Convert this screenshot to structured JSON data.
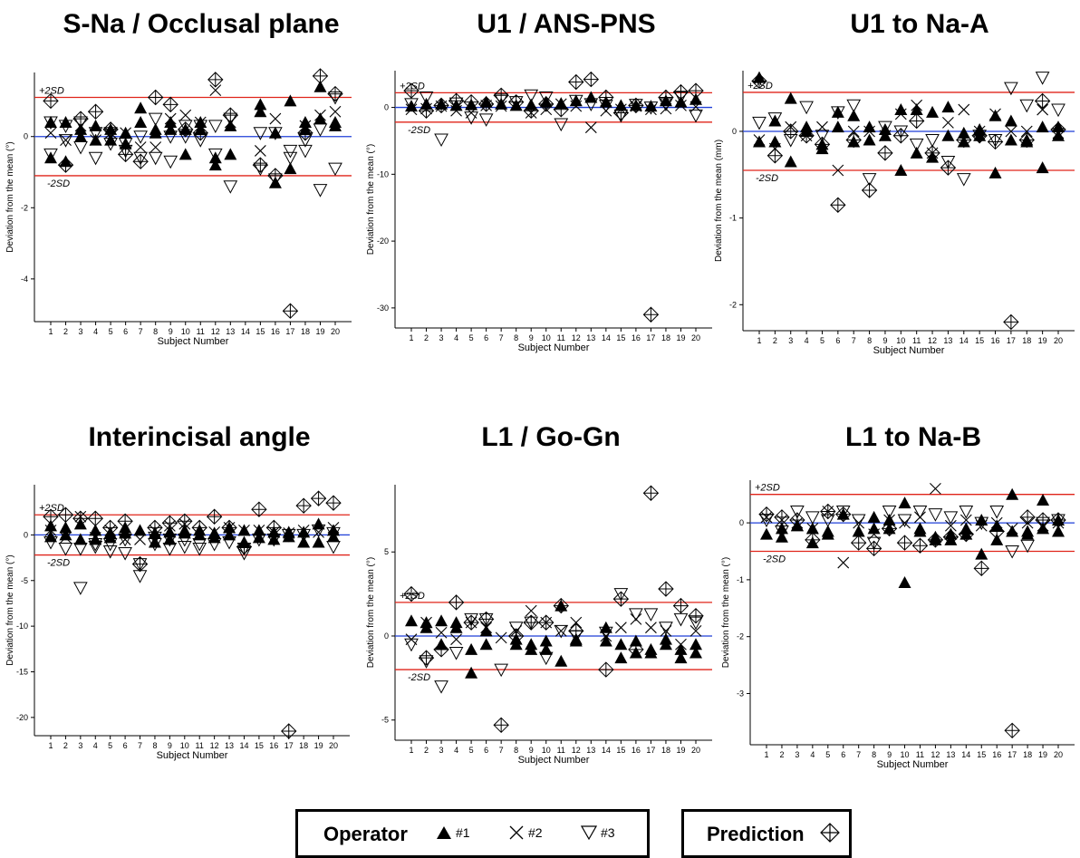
{
  "colors": {
    "ref": "#e0241a",
    "mean": "#1f3fd8",
    "marker": "#000000"
  },
  "chart_data": [
    {
      "type": "scatter",
      "title": "S-Na / Occlusal plane",
      "xlabel": "Subject Number",
      "ylabel": "Deviation from the mean (°)",
      "ylim": [
        -5.2,
        1.8
      ],
      "yticks": [
        -4,
        -2,
        0
      ],
      "plus2sd": 1.1,
      "minus2sd": -1.1,
      "sd_labels": [
        "+2SD",
        "-2SD"
      ],
      "x": [
        1,
        2,
        3,
        4,
        5,
        6,
        7,
        8,
        9,
        10,
        11,
        12,
        13,
        14,
        15,
        16,
        17,
        18,
        19,
        20
      ],
      "series": [
        {
          "name": "#1",
          "values": [
            0.4,
            0.4,
            0.2,
            0.3,
            0.2,
            0.1,
            0.8,
            0.2,
            0.2,
            -0.5,
            0.4,
            -0.6,
            0.3,
            null,
            0.9,
            -1.3,
            1.0,
            0.4,
            1.4,
            0.3
          ]
        },
        {
          "name": "#1",
          "values": [
            -0.6,
            -0.7,
            0.0,
            -0.1,
            -0.1,
            -0.2,
            0.4,
            0.1,
            0.4,
            0.2,
            0.2,
            -0.8,
            -0.5,
            null,
            0.7,
            0.1,
            -0.9,
            0.2,
            0.5,
            0.4
          ]
        },
        {
          "name": "#2",
          "values": [
            0.1,
            -0.1,
            0.3,
            -0.1,
            0.1,
            0.1,
            -0.3,
            -0.3,
            0.5,
            0.6,
            0.4,
            1.3,
            0.4,
            null,
            -0.4,
            0.5,
            null,
            0.3,
            0.6,
            0.7
          ]
        },
        {
          "name": "#3",
          "values": [
            -0.5,
            -0.1,
            -0.3,
            -0.6,
            0.1,
            -0.4,
            -0.6,
            -0.6,
            -0.7,
            0.0,
            -0.1,
            -0.5,
            -1.4,
            null,
            -0.9,
            -1.2,
            -0.6,
            -0.4,
            -1.5,
            -0.9
          ]
        },
        {
          "name": "#3",
          "values": [
            0.4,
            0.3,
            0.4,
            0.1,
            -0.2,
            -0.2,
            0.0,
            0.5,
            0.0,
            0.3,
            0.3,
            0.3,
            0.5,
            null,
            0.1,
            0.1,
            -0.4,
            -0.1,
            0.2,
            1.1
          ]
        },
        {
          "name": "Prediction",
          "values": [
            1.0,
            -0.8,
            0.5,
            0.7,
            0.2,
            -0.5,
            -0.7,
            1.1,
            0.9,
            0.2,
            0.1,
            1.6,
            0.6,
            null,
            -0.8,
            -1.1,
            -4.9,
            0.1,
            1.7,
            1.2
          ]
        }
      ]
    },
    {
      "type": "scatter",
      "title": "U1 / ANS-PNS",
      "xlabel": "Subject Number",
      "ylabel": "Deviation from the mean (°)",
      "ylim": [
        -33,
        5.5
      ],
      "yticks": [
        -30,
        -20,
        -10,
        0
      ],
      "plus2sd": 2.2,
      "minus2sd": -2.2,
      "sd_labels": [
        "+2SD",
        "-2SD"
      ],
      "x": [
        1,
        2,
        3,
        4,
        5,
        6,
        7,
        8,
        9,
        10,
        11,
        12,
        13,
        14,
        15,
        16,
        17,
        18,
        19,
        20
      ],
      "series": [
        {
          "name": "#1",
          "values": [
            0.2,
            0.5,
            0.5,
            0.3,
            0.4,
            0.8,
            0.5,
            0.3,
            0.4,
            0.8,
            0.6,
            1.0,
            1.5,
            0.8,
            0.3,
            0.3,
            0.2,
            1.0,
            0.8,
            1.2
          ]
        },
        {
          "name": "#2",
          "values": [
            -0.3,
            -0.2,
            0.2,
            -0.5,
            -0.8,
            0.3,
            0.2,
            0.4,
            -0.8,
            -0.3,
            0.5,
            0.2,
            -3.0,
            -0.5,
            -0.3,
            0.2,
            -0.3,
            -0.2,
            0.3,
            0.1
          ]
        },
        {
          "name": "#3",
          "values": [
            0.5,
            1.5,
            -4.8,
            0.6,
            -1.5,
            -1.8,
            1.2,
            0.8,
            1.8,
            1.5,
            -2.5,
            1.0,
            0.5,
            0.3,
            -1.2,
            0.4,
            0.0,
            0.5,
            1.6,
            -1.2
          ]
        },
        {
          "name": "Prediction",
          "values": [
            2.5,
            -0.5,
            0.3,
            1.0,
            0.8,
            0.5,
            1.8,
            0.8,
            -0.5,
            0.5,
            -0.3,
            3.8,
            4.2,
            1.5,
            -0.8,
            0.3,
            -31.0,
            1.5,
            2.3,
            2.5
          ]
        }
      ]
    },
    {
      "type": "scatter",
      "title": "U1 to Na-A",
      "xlabel": "Subject Number",
      "ylabel": "Deviation from the mean (mm)",
      "ylim": [
        -2.3,
        0.7
      ],
      "yticks": [
        -2,
        -1,
        0
      ],
      "plus2sd": 0.45,
      "minus2sd": -0.45,
      "sd_labels": [
        "+2SD",
        "-2SD"
      ],
      "x": [
        1,
        2,
        3,
        4,
        5,
        6,
        7,
        8,
        9,
        10,
        11,
        12,
        13,
        14,
        15,
        16,
        17,
        18,
        19,
        20
      ],
      "series": [
        {
          "name": "#1",
          "values": [
            0.62,
            0.12,
            0.38,
            0.0,
            -0.2,
            0.22,
            0.18,
            0.05,
            0.02,
            0.25,
            0.25,
            0.22,
            0.28,
            -0.12,
            0.02,
            -0.48,
            0.12,
            -0.12,
            -0.42,
            -0.05
          ]
        },
        {
          "name": "#1",
          "values": [
            -0.12,
            -0.12,
            -0.35,
            0.05,
            -0.15,
            0.05,
            -0.12,
            -0.1,
            -0.05,
            -0.45,
            -0.25,
            -0.3,
            -0.05,
            -0.02,
            -0.05,
            0.18,
            -0.1,
            -0.1,
            0.05,
            0.05
          ]
        },
        {
          "name": "#2",
          "values": [
            -0.1,
            -0.2,
            0.05,
            -0.05,
            0.05,
            -0.45,
            0.0,
            0.0,
            -0.05,
            0.2,
            0.3,
            -0.25,
            0.1,
            0.25,
            0.0,
            0.2,
            0.0,
            0.0,
            0.25,
            -0.02
          ]
        },
        {
          "name": "#3",
          "values": [
            0.1,
            0.15,
            -0.1,
            0.28,
            -0.05,
            0.22,
            0.3,
            -0.55,
            0.05,
            0.0,
            -0.15,
            -0.1,
            -0.35,
            -0.55,
            -0.05,
            -0.1,
            0.5,
            0.3,
            0.62,
            0.25
          ]
        },
        {
          "name": "Prediction",
          "values": [
            0.58,
            -0.28,
            0.0,
            -0.05,
            -0.15,
            -0.85,
            -0.1,
            -0.68,
            -0.25,
            -0.05,
            0.12,
            -0.25,
            -0.42,
            -0.1,
            -0.05,
            -0.12,
            -2.2,
            -0.1,
            0.35,
            0.02
          ]
        }
      ]
    },
    {
      "type": "scatter",
      "title": "Interincisal angle",
      "xlabel": "Subject Number",
      "ylabel": "Deviation from the mean (°)",
      "ylim": [
        -22,
        5.5
      ],
      "yticks": [
        -20,
        -15,
        -10,
        -5,
        0
      ],
      "plus2sd": 2.2,
      "minus2sd": -2.2,
      "sd_labels": [
        "+2SD",
        "-2SD"
      ],
      "x": [
        1,
        2,
        3,
        4,
        5,
        6,
        7,
        8,
        9,
        10,
        11,
        12,
        13,
        14,
        15,
        16,
        17,
        18,
        19,
        20
      ],
      "series": [
        {
          "name": "#1",
          "values": [
            1.0,
            0.8,
            1.2,
            0.5,
            0.2,
            0.8,
            0.5,
            -0.8,
            0.3,
            0.5,
            0.5,
            -0.3,
            0.8,
            0.5,
            0.5,
            0.3,
            0.3,
            0.3,
            1.2,
            0.5
          ]
        },
        {
          "name": "#1",
          "values": [
            -0.2,
            0.0,
            -0.5,
            -0.5,
            -0.3,
            0.2,
            null,
            0.2,
            -0.5,
            0.2,
            0.0,
            0.2,
            0.0,
            -0.8,
            -0.3,
            -0.5,
            -0.2,
            -0.8,
            -0.8,
            -0.2
          ]
        },
        {
          "name": "#2",
          "values": [
            0.5,
            -0.3,
            2.0,
            -0.3,
            0.5,
            -0.5,
            -0.5,
            0.5,
            1.0,
            1.2,
            0.0,
            0.3,
            0.8,
            0.5,
            0.5,
            0.3,
            0.2,
            0.5,
            0.3,
            0.8
          ]
        },
        {
          "name": "#3",
          "values": [
            -0.8,
            -1.5,
            -5.8,
            -1.3,
            -1.8,
            -2.0,
            -4.5,
            -1.0,
            -1.5,
            -1.3,
            -1.5,
            -1.0,
            -0.8,
            -2.0,
            -0.5,
            -0.5,
            0.0,
            0.0,
            0.5,
            -1.3
          ]
        },
        {
          "name": "#3",
          "values": [
            null,
            null,
            -1.5,
            -1.0,
            -1.0,
            -0.5,
            -3.2,
            -0.3,
            -0.5,
            -0.5,
            -1.0,
            null,
            null,
            -1.5,
            null,
            null,
            null,
            null,
            null,
            0.2
          ]
        },
        {
          "name": "Prediction",
          "values": [
            2.0,
            2.2,
            1.8,
            1.8,
            0.8,
            1.5,
            -3.2,
            0.8,
            1.3,
            1.5,
            0.8,
            2.0,
            0.8,
            -1.3,
            2.8,
            0.8,
            -21.5,
            3.2,
            4.0,
            3.5
          ]
        }
      ]
    },
    {
      "type": "scatter",
      "title": "L1 / Go-Gn",
      "xlabel": "Subject Number",
      "ylabel": "Deviation from the mean (°)",
      "ylim": [
        -6.2,
        9.0
      ],
      "yticks": [
        -5,
        0,
        5
      ],
      "plus2sd": 2.0,
      "minus2sd": -2.0,
      "sd_labels": [
        "+2SD",
        "-2SD"
      ],
      "x": [
        1,
        2,
        3,
        4,
        5,
        6,
        7,
        8,
        9,
        10,
        11,
        12,
        13,
        14,
        15,
        16,
        17,
        18,
        19,
        20
      ],
      "series": [
        {
          "name": "#1",
          "values": [
            0.9,
            0.8,
            0.9,
            0.5,
            -2.2,
            0.3,
            null,
            -0.2,
            -0.5,
            -0.3,
            1.8,
            -0.3,
            null,
            0.5,
            -1.3,
            -1.0,
            -0.8,
            -0.2,
            -1.3,
            -0.5
          ]
        },
        {
          "name": "#1",
          "values": [
            null,
            0.5,
            -0.5,
            0.8,
            -0.8,
            -0.5,
            null,
            -0.5,
            -0.8,
            -0.8,
            -1.5,
            -0.2,
            null,
            -0.3,
            -0.5,
            -0.3,
            -1.0,
            -0.5,
            -0.8,
            -1.0
          ]
        },
        {
          "name": "#2",
          "values": [
            -0.2,
            0.8,
            0.2,
            -0.2,
            0.8,
            0.5,
            -0.1,
            0.3,
            1.5,
            0.8,
            0.3,
            0.8,
            null,
            0.0,
            0.5,
            1.0,
            0.5,
            0.3,
            -0.5,
            0.3
          ]
        },
        {
          "name": "#3",
          "values": [
            -0.5,
            -1.5,
            -3.0,
            -1.0,
            1.0,
            1.0,
            -2.0,
            0.5,
            0.8,
            -1.3,
            0.3,
            0.0,
            null,
            0.2,
            2.5,
            1.3,
            1.3,
            0.5,
            1.0,
            0.8
          ]
        },
        {
          "name": "Prediction",
          "values": [
            2.5,
            -1.3,
            -0.8,
            2.0,
            0.8,
            1.0,
            -5.3,
            0.0,
            0.8,
            0.8,
            1.8,
            0.3,
            null,
            -2.0,
            2.2,
            -0.8,
            8.5,
            2.8,
            1.8,
            1.2
          ]
        }
      ]
    },
    {
      "type": "scatter",
      "title": "L1 to Na-B",
      "xlabel": "Subject Number",
      "ylabel": "Deviation from the mean (°)",
      "ylim": [
        -3.9,
        0.75
      ],
      "yticks": [
        -3,
        -2,
        -1,
        0
      ],
      "plus2sd": 0.5,
      "minus2sd": -0.5,
      "sd_labels": [
        "+2SD",
        "-2SD"
      ],
      "x": [
        1,
        2,
        3,
        4,
        5,
        6,
        7,
        8,
        9,
        10,
        11,
        12,
        13,
        14,
        15,
        16,
        17,
        18,
        19,
        20
      ],
      "series": [
        {
          "name": "#1",
          "values": [
            -0.2,
            -0.1,
            -0.05,
            -0.35,
            -0.15,
            0.15,
            -0.15,
            0.1,
            0.05,
            0.35,
            -0.1,
            -0.3,
            -0.2,
            -0.2,
            0.05,
            -0.05,
            0.5,
            -0.15,
            0.4,
            0.05
          ]
        },
        {
          "name": "#1",
          "values": [
            null,
            -0.25,
            -0.05,
            -0.1,
            -0.2,
            null,
            null,
            -0.1,
            -0.1,
            -1.05,
            -0.15,
            -0.25,
            -0.3,
            -0.1,
            -0.55,
            -0.3,
            -0.15,
            -0.2,
            -0.1,
            -0.15
          ]
        },
        {
          "name": "#2",
          "values": [
            0.1,
            0.05,
            0.0,
            -0.1,
            0.2,
            -0.7,
            0.0,
            -0.2,
            0.05,
            0.0,
            0.1,
            0.6,
            -0.05,
            0.05,
            -0.05,
            0.0,
            -0.1,
            0.0,
            -0.05,
            0.0
          ]
        },
        {
          "name": "#3",
          "values": [
            0.05,
            -0.15,
            0.2,
            0.1,
            0.05,
            0.2,
            0.05,
            -0.35,
            0.2,
            0.05,
            0.2,
            0.15,
            0.1,
            0.2,
            0.0,
            0.2,
            -0.5,
            -0.4,
            0.0,
            0.05
          ]
        },
        {
          "name": "Prediction",
          "values": [
            0.15,
            0.1,
            0.05,
            -0.3,
            0.2,
            0.15,
            -0.35,
            -0.45,
            -0.1,
            -0.35,
            -0.4,
            -0.3,
            -0.25,
            -0.2,
            -0.8,
            -0.15,
            -3.65,
            0.1,
            0.05,
            0.05
          ]
        }
      ]
    }
  ],
  "legend": {
    "operator_title": "Operator",
    "operators": [
      "#1",
      "#2",
      "#3"
    ],
    "prediction_title": "Prediction"
  }
}
